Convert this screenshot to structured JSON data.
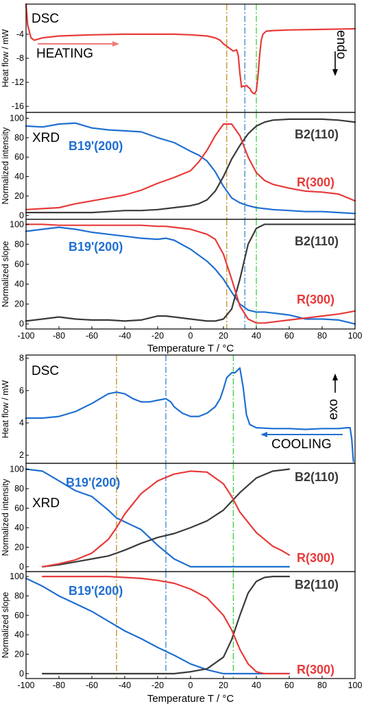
{
  "colors": {
    "red": "#e83a3a",
    "blue": "#1f6fd1",
    "dark": "#3a3a3a",
    "orange_line": "#b8860b",
    "blue_line": "#2a7ac6",
    "green_line": "#2ecc2e",
    "heating_arrow": "#f07a7a",
    "cooling_arrow": "#1f6fd1"
  },
  "heating": {
    "xlabel": "Temperature T / °C",
    "xticks": [
      "-100",
      "-80",
      "-60",
      "-40",
      "-20",
      "0",
      "20",
      "40",
      "60",
      "80",
      "100"
    ],
    "dsc": {
      "tag": "DSC",
      "ylabel": "Heat flow / mW",
      "yticks": [
        "-4",
        "-8",
        "-12",
        "-16"
      ],
      "process": "HEATING",
      "direction": "endo"
    },
    "xrd": {
      "tag": "XRD",
      "ylabel": "Normalized intensity",
      "yticks": [
        "0",
        "20",
        "40",
        "60",
        "80",
        "100"
      ]
    },
    "slope": {
      "ylabel": "Normalized slope",
      "yticks": [
        "0",
        "20",
        "40",
        "60",
        "80",
        "100"
      ]
    },
    "labels": {
      "b19": "B19'(200)",
      "b2": "B2(110)",
      "r": "R(300)"
    }
  },
  "cooling": {
    "xlabel": "Temperature T / °C",
    "xticks": [
      "-100",
      "-80",
      "-60",
      "-40",
      "-20",
      "0",
      "20",
      "40",
      "60",
      "80",
      "100"
    ],
    "dsc": {
      "tag": "DSC",
      "ylabel": "Heat flow / mW",
      "yticks": [
        "2",
        "4",
        "6",
        "8"
      ],
      "process": "COOLING",
      "direction": "exo"
    },
    "xrd": {
      "tag": "XRD",
      "ylabel": "Normalized intensity",
      "yticks": [
        "0",
        "20",
        "40",
        "60",
        "80",
        "100"
      ]
    },
    "slope": {
      "ylabel": "Normalized slope",
      "yticks": [
        "0",
        "20",
        "40",
        "60",
        "80",
        "100"
      ]
    },
    "labels": {
      "b19": "B19'(200)",
      "b2": "B2(110)",
      "r": "R(300)"
    }
  },
  "chart_data": [
    {
      "type": "line",
      "panel": "heating-dsc",
      "xlim": [
        -100,
        100
      ],
      "ylim": [
        -17,
        1
      ],
      "x": [
        -100,
        -99,
        -97,
        -95,
        -90,
        -80,
        -60,
        -40,
        -20,
        -10,
        0,
        10,
        15,
        18,
        20,
        22,
        24,
        26,
        27,
        28,
        29,
        30,
        31,
        32,
        33,
        34,
        35,
        36,
        37,
        38,
        39,
        40,
        41,
        42,
        43,
        44,
        46,
        50,
        60,
        80,
        100
      ],
      "series": [
        {
          "color": "red",
          "y": [
            1,
            -2.5,
            -4.6,
            -5.0,
            -4.6,
            -4.3,
            -4.1,
            -4.0,
            -4.0,
            -4.0,
            -4.1,
            -4.3,
            -4.6,
            -5.0,
            -5.6,
            -6.0,
            -6.4,
            -6.8,
            -6.7,
            -6.6,
            -7.5,
            -10.5,
            -12.8,
            -12.6,
            -12.7,
            -12.5,
            -12.8,
            -13.0,
            -13.5,
            -13.8,
            -13.9,
            -13.4,
            -11.0,
            -7.5,
            -5.0,
            -4.0,
            -3.5,
            -3.4,
            -3.3,
            -3.2,
            -3.1
          ]
        }
      ]
    },
    {
      "type": "line",
      "panel": "heating-xrd",
      "xlim": [
        -100,
        100
      ],
      "ylim": [
        -4,
        106
      ],
      "x": [
        -100,
        -90,
        -80,
        -70,
        -60,
        -50,
        -40,
        -30,
        -20,
        -10,
        0,
        5,
        10,
        15,
        20,
        25,
        30,
        35,
        40,
        45,
        50,
        60,
        70,
        80,
        90,
        100
      ],
      "series": [
        {
          "name": "B19'(200)",
          "color": "blue",
          "y": [
            92,
            91,
            94,
            95,
            90,
            88,
            87,
            86,
            80,
            75,
            66,
            62,
            56,
            45,
            30,
            18,
            13,
            10,
            8,
            7,
            6,
            5,
            4,
            4,
            3,
            2
          ]
        },
        {
          "name": "B2(110)",
          "color": "dark",
          "y": [
            3,
            3,
            3,
            3,
            3,
            4,
            5,
            5,
            6,
            8,
            10,
            12,
            16,
            25,
            40,
            58,
            72,
            84,
            92,
            96,
            98,
            99,
            99,
            99,
            98,
            96
          ]
        },
        {
          "name": "R(300)",
          "color": "red",
          "y": [
            6,
            7,
            8,
            12,
            15,
            18,
            21,
            26,
            33,
            39,
            46,
            55,
            67,
            82,
            94,
            94,
            82,
            60,
            44,
            36,
            32,
            28,
            25,
            24,
            22,
            15
          ]
        }
      ]
    },
    {
      "type": "line",
      "panel": "heating-slope",
      "xlim": [
        -100,
        100
      ],
      "ylim": [
        -5,
        105
      ],
      "x": [
        -100,
        -90,
        -80,
        -70,
        -60,
        -50,
        -40,
        -30,
        -20,
        -15,
        -10,
        0,
        10,
        15,
        20,
        25,
        30,
        35,
        40,
        45,
        50,
        60,
        70,
        80,
        90,
        100
      ],
      "series": [
        {
          "name": "B19'(200)",
          "color": "blue",
          "y": [
            93,
            95,
            97,
            95,
            92,
            90,
            88,
            86,
            85,
            86,
            84,
            75,
            63,
            55,
            45,
            32,
            20,
            14,
            12,
            12,
            11,
            9,
            5,
            5,
            4,
            0
          ]
        },
        {
          "name": "B2(110)",
          "color": "dark",
          "y": [
            3,
            5,
            7,
            5,
            4,
            4,
            3,
            4,
            8,
            8,
            7,
            5,
            3,
            3,
            5,
            15,
            45,
            80,
            96,
            100,
            100,
            100,
            100,
            100,
            100,
            100
          ]
        },
        {
          "name": "R(300)",
          "color": "red",
          "y": [
            100,
            100,
            99,
            99,
            99,
            99,
            99,
            99,
            98,
            98,
            97,
            95,
            90,
            85,
            70,
            45,
            18,
            5,
            1,
            1,
            2,
            4,
            6,
            8,
            10,
            13
          ]
        }
      ]
    },
    {
      "type": "line",
      "panel": "cooling-dsc",
      "xlim": [
        -100,
        100
      ],
      "ylim": [
        1.5,
        8.2
      ],
      "x": [
        -100,
        -90,
        -80,
        -70,
        -60,
        -50,
        -45,
        -40,
        -35,
        -30,
        -25,
        -20,
        -15,
        -12,
        -10,
        -5,
        0,
        5,
        10,
        15,
        18,
        20,
        22,
        24,
        25,
        27,
        28,
        30,
        32,
        34,
        36,
        40,
        50,
        60,
        70,
        80,
        90,
        95,
        97,
        98,
        99
      ],
      "series": [
        {
          "color": "blue",
          "y": [
            4.3,
            4.3,
            4.4,
            4.7,
            5.2,
            5.8,
            5.9,
            5.8,
            5.5,
            5.3,
            5.3,
            5.4,
            5.5,
            5.3,
            5.0,
            4.6,
            4.4,
            4.4,
            4.6,
            5.0,
            5.5,
            6.1,
            6.8,
            7.0,
            7.1,
            7.1,
            7.2,
            7.4,
            6.2,
            4.5,
            3.9,
            3.7,
            3.65,
            3.65,
            3.6,
            3.65,
            3.65,
            3.7,
            3.7,
            3.0,
            1.6
          ]
        }
      ]
    },
    {
      "type": "line",
      "panel": "cooling-xrd",
      "xlim": [
        -100,
        100
      ],
      "ylim": [
        -5,
        106
      ],
      "x": [
        -100,
        -90,
        -80,
        -70,
        -60,
        -50,
        -45,
        -40,
        -30,
        -20,
        -10,
        0,
        10,
        20,
        25,
        30,
        40,
        50,
        55,
        60
      ],
      "series": [
        {
          "name": "B19'(200)",
          "color": "blue",
          "y": [
            100,
            98,
            88,
            78,
            72,
            58,
            50,
            46,
            38,
            22,
            8,
            0,
            0,
            0,
            0,
            0,
            0,
            0,
            0,
            0
          ]
        },
        {
          "name": "B2(110)",
          "color": "dark",
          "y": [
            null,
            0,
            2,
            5,
            8,
            11,
            14,
            17,
            24,
            30,
            34,
            40,
            47,
            58,
            67,
            76,
            91,
            98,
            99,
            100
          ]
        },
        {
          "name": "R(300)",
          "color": "red",
          "y": [
            null,
            0,
            3,
            7,
            14,
            28,
            40,
            54,
            75,
            88,
            95,
            98,
            97,
            85,
            72,
            56,
            35,
            21,
            17,
            12
          ]
        }
      ]
    },
    {
      "type": "line",
      "panel": "cooling-slope",
      "xlim": [
        -100,
        100
      ],
      "ylim": [
        -5,
        105
      ],
      "x": [
        -100,
        -90,
        -80,
        -70,
        -60,
        -50,
        -40,
        -30,
        -20,
        -10,
        0,
        10,
        20,
        25,
        30,
        35,
        40,
        45,
        50,
        55,
        60
      ],
      "series": [
        {
          "name": "B19'(200)",
          "color": "blue",
          "y": [
            98,
            90,
            80,
            72,
            64,
            54,
            44,
            36,
            27,
            19,
            10,
            4,
            0,
            0,
            0,
            0,
            0,
            0,
            0,
            0,
            0
          ]
        },
        {
          "name": "B2(110)",
          "color": "dark",
          "y": [
            null,
            0,
            0,
            0,
            0,
            0,
            0,
            0,
            0,
            0,
            2,
            5,
            17,
            35,
            60,
            83,
            95,
            99,
            100,
            100,
            100
          ]
        },
        {
          "name": "R(300)",
          "color": "red",
          "y": [
            null,
            100,
            100,
            100,
            100,
            100,
            99,
            98,
            96,
            93,
            87,
            78,
            60,
            45,
            25,
            10,
            2,
            0,
            0,
            0,
            0
          ]
        }
      ]
    }
  ],
  "markers": {
    "heating": [
      {
        "x": 22,
        "color": "orange_line"
      },
      {
        "x": 33,
        "color": "blue_line"
      },
      {
        "x": 40,
        "color": "green_line"
      }
    ],
    "cooling": [
      {
        "x": -45,
        "color": "orange_line"
      },
      {
        "x": -15,
        "color": "blue_line"
      },
      {
        "x": 26,
        "color": "green_line"
      }
    ]
  }
}
